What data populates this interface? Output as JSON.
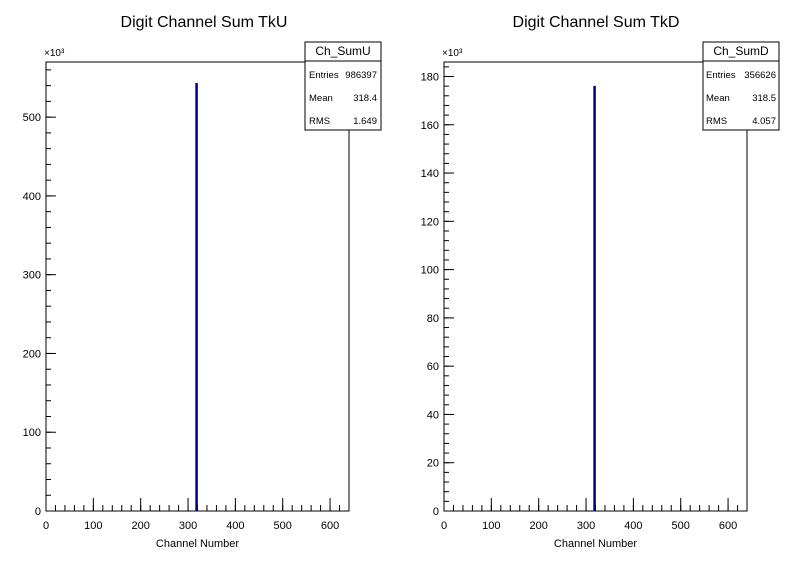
{
  "chart_data": [
    {
      "type": "bar",
      "title": "Digit Channel Sum TkU",
      "xlabel": "Channel Number",
      "ylabel": "",
      "xlim": [
        0,
        640
      ],
      "ylim": [
        0,
        570
      ],
      "y_multiplier_label": "×10³",
      "x_ticks": [
        0,
        100,
        200,
        300,
        400,
        500,
        600
      ],
      "x_tick_labels": [
        "0",
        "100",
        "200",
        "300",
        "400",
        "500",
        "600"
      ],
      "y_ticks": [
        0,
        100,
        200,
        300,
        400,
        500
      ],
      "y_tick_labels": [
        "0",
        "100",
        "200",
        "300",
        "400",
        "500"
      ],
      "bins": [
        {
          "x": 318,
          "value": 543
        }
      ],
      "line_color": "#000080",
      "stats": {
        "name": "Ch_SumU",
        "rows": [
          {
            "label": "Entries",
            "value": "986397"
          },
          {
            "label": "Mean",
            "value": "318.4"
          },
          {
            "label": "RMS",
            "value": "1.649"
          }
        ]
      }
    },
    {
      "type": "bar",
      "title": "Digit Channel Sum TkD",
      "xlabel": "Channel Number",
      "ylabel": "",
      "xlim": [
        0,
        640
      ],
      "ylim": [
        0,
        186
      ],
      "y_multiplier_label": "×10³",
      "x_ticks": [
        0,
        100,
        200,
        300,
        400,
        500,
        600
      ],
      "x_tick_labels": [
        "0",
        "100",
        "200",
        "300",
        "400",
        "500",
        "600"
      ],
      "y_ticks": [
        0,
        20,
        40,
        60,
        80,
        100,
        120,
        140,
        160,
        180
      ],
      "y_tick_labels": [
        "0",
        "20",
        "40",
        "60",
        "80",
        "100",
        "120",
        "140",
        "160",
        "180"
      ],
      "bins": [
        {
          "x": 318,
          "value": 176
        }
      ],
      "line_color": "#000080",
      "stats": {
        "name": "Ch_SumD",
        "rows": [
          {
            "label": "Entries",
            "value": "356626"
          },
          {
            "label": "Mean",
            "value": "318.5"
          },
          {
            "label": "RMS",
            "value": "4.057"
          }
        ]
      }
    }
  ]
}
